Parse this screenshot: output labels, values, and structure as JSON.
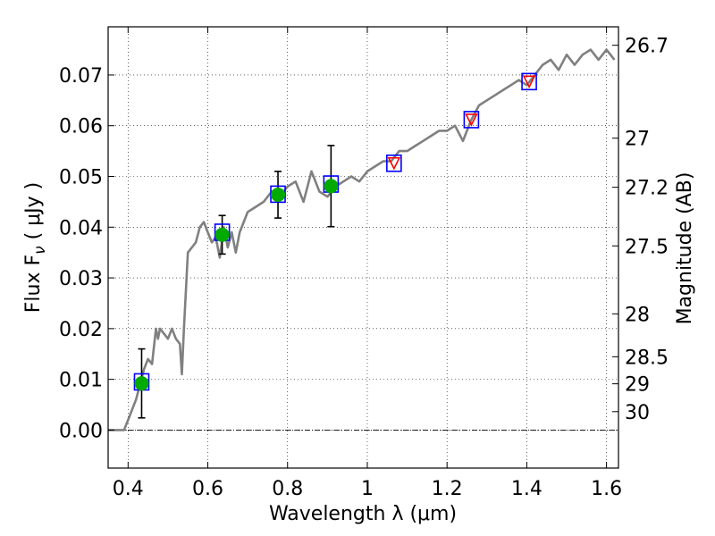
{
  "chart_data": {
    "type": "scatter",
    "xlabel": "Wavelength  λ (μm)",
    "ylabel": "Flux  F",
    "ylabel_sub": "ν",
    "ylabel_unit": " ( μJy )",
    "y2label": "Magnitude (AB)",
    "xlim": [
      0.35,
      1.63
    ],
    "ylim": [
      -0.0075,
      0.0795
    ],
    "grid": true,
    "x_ticks": [
      {
        "value": 0.4,
        "label": "0.4"
      },
      {
        "value": 0.6,
        "label": "0.6"
      },
      {
        "value": 0.8,
        "label": "0.8"
      },
      {
        "value": 1.0,
        "label": "1"
      },
      {
        "value": 1.2,
        "label": "1.2"
      },
      {
        "value": 1.4,
        "label": "1.4"
      },
      {
        "value": 1.6,
        "label": "1.6"
      }
    ],
    "y_ticks": [
      {
        "value": 0.0,
        "label": "0.00"
      },
      {
        "value": 0.01,
        "label": "0.01"
      },
      {
        "value": 0.02,
        "label": "0.02"
      },
      {
        "value": 0.03,
        "label": "0.03"
      },
      {
        "value": 0.04,
        "label": "0.04"
      },
      {
        "value": 0.05,
        "label": "0.05"
      },
      {
        "value": 0.06,
        "label": "0.06"
      },
      {
        "value": 0.07,
        "label": "0.07"
      }
    ],
    "mag_ticks": [
      {
        "value": 26.7,
        "label": "26.7"
      },
      {
        "value": 27.0,
        "label": "27"
      },
      {
        "value": 27.2,
        "label": "27.2"
      },
      {
        "value": 27.5,
        "label": "27.5"
      },
      {
        "value": 28.0,
        "label": "28"
      },
      {
        "value": 28.5,
        "label": "28.5"
      },
      {
        "value": 29.0,
        "label": "29"
      },
      {
        "value": 30.0,
        "label": "30"
      }
    ],
    "model_spectrum": {
      "color": "#808080",
      "x": [
        0.35,
        0.39,
        0.4,
        0.42,
        0.43,
        0.44,
        0.45,
        0.46,
        0.47,
        0.475,
        0.48,
        0.49,
        0.5,
        0.51,
        0.52,
        0.53,
        0.535,
        0.54,
        0.55,
        0.56,
        0.57,
        0.58,
        0.59,
        0.6,
        0.61,
        0.62,
        0.63,
        0.64,
        0.65,
        0.66,
        0.67,
        0.68,
        0.69,
        0.7,
        0.72,
        0.74,
        0.76,
        0.78,
        0.8,
        0.82,
        0.84,
        0.86,
        0.88,
        0.9,
        0.92,
        0.94,
        0.96,
        0.98,
        1.0,
        1.02,
        1.04,
        1.06,
        1.08,
        1.1,
        1.12,
        1.14,
        1.16,
        1.18,
        1.2,
        1.22,
        1.24,
        1.26,
        1.28,
        1.3,
        1.32,
        1.34,
        1.36,
        1.38,
        1.4,
        1.42,
        1.44,
        1.46,
        1.48,
        1.5,
        1.52,
        1.54,
        1.56,
        1.58,
        1.6,
        1.62
      ],
      "y": [
        0.0,
        0.0,
        0.002,
        0.006,
        0.009,
        0.012,
        0.014,
        0.013,
        0.02,
        0.018,
        0.02,
        0.019,
        0.018,
        0.02,
        0.018,
        0.017,
        0.011,
        0.02,
        0.035,
        0.036,
        0.037,
        0.04,
        0.041,
        0.039,
        0.037,
        0.038,
        0.034,
        0.04,
        0.036,
        0.039,
        0.035,
        0.039,
        0.041,
        0.043,
        0.044,
        0.045,
        0.047,
        0.046,
        0.048,
        0.049,
        0.045,
        0.051,
        0.047,
        0.046,
        0.048,
        0.049,
        0.05,
        0.049,
        0.051,
        0.052,
        0.053,
        0.053,
        0.055,
        0.055,
        0.056,
        0.057,
        0.058,
        0.059,
        0.059,
        0.06,
        0.057,
        0.061,
        0.064,
        0.065,
        0.066,
        0.067,
        0.068,
        0.069,
        0.068,
        0.07,
        0.072,
        0.073,
        0.071,
        0.074,
        0.072,
        0.074,
        0.075,
        0.073,
        0.075,
        0.073
      ]
    },
    "observed": {
      "color": "#00aa00",
      "x": [
        0.434,
        0.636,
        0.776,
        0.909
      ],
      "y": [
        0.0092,
        0.0385,
        0.0464,
        0.0481
      ],
      "y_err": [
        0.0068,
        0.0038,
        0.0046,
        0.008
      ]
    },
    "model_photometry": {
      "color": "#0000ff",
      "x": [
        0.434,
        0.636,
        0.776,
        0.909,
        1.067,
        1.261,
        1.406
      ],
      "y": [
        0.0095,
        0.039,
        0.0465,
        0.0485,
        0.0526,
        0.0612,
        0.0687
      ]
    },
    "upper_limits": {
      "color": "#ff0000",
      "x": [
        1.067,
        1.261,
        1.406
      ],
      "y": [
        0.0526,
        0.0612,
        0.0687
      ]
    }
  }
}
